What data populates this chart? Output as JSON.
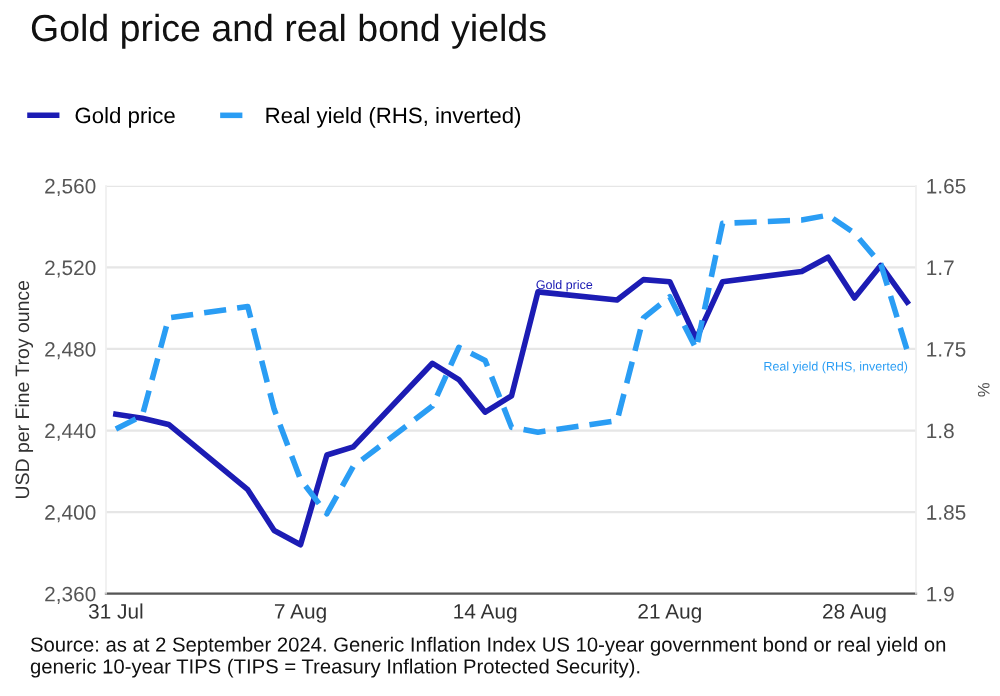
{
  "chart_data": {
    "type": "line",
    "title": "Gold price and real bond yields",
    "ylabel": "USD per Fine Troy ounce",
    "y2label": "%",
    "x": [
      "2024-07-31",
      "2024-08-01",
      "2024-08-02",
      "2024-08-05",
      "2024-08-06",
      "2024-08-07",
      "2024-08-08",
      "2024-08-09",
      "2024-08-12",
      "2024-08-13",
      "2024-08-14",
      "2024-08-15",
      "2024-08-16",
      "2024-08-19",
      "2024-08-20",
      "2024-08-21",
      "2024-08-22",
      "2024-08-23",
      "2024-08-26",
      "2024-08-27",
      "2024-08-28",
      "2024-08-29",
      "2024-08-30"
    ],
    "series": [
      {
        "name": "Gold price",
        "color": "#1c1cb4",
        "line_style": "solid",
        "values": [
          2448,
          2446,
          2443,
          2411,
          2391,
          2384,
          2428,
          2432,
          2473,
          2465,
          2449,
          2457,
          2508,
          2504,
          2514,
          2513,
          2485,
          2513,
          2518,
          2525,
          2505,
          2521,
          2503
        ]
      },
      {
        "name": "Real yield (RHS, inverted)",
        "color": "#2a9df4",
        "line_style": "dashed",
        "axis": "y2",
        "values": [
          1.799,
          1.791,
          1.731,
          1.724,
          1.787,
          1.83,
          1.851,
          1.822,
          1.785,
          1.749,
          1.757,
          1.798,
          1.801,
          1.794,
          1.731,
          1.718,
          1.75,
          1.673,
          1.671,
          1.668,
          1.679,
          1.698,
          1.751
        ]
      }
    ],
    "xlim": [
      "2024-07-30T15:00",
      "2024-08-30T08:00"
    ],
    "xticks": [
      {
        "value": "2024-07-31",
        "label": "31 Jul"
      },
      {
        "value": "2024-08-07",
        "label": "7 Aug"
      },
      {
        "value": "2024-08-14",
        "label": "14 Aug"
      },
      {
        "value": "2024-08-21",
        "label": "21 Aug"
      },
      {
        "value": "2024-08-28",
        "label": "28 Aug"
      }
    ],
    "ylim": [
      2360,
      2560
    ],
    "yticks": [
      {
        "value": 2360,
        "label": "2,360"
      },
      {
        "value": 2400,
        "label": "2,400"
      },
      {
        "value": 2440,
        "label": "2,440"
      },
      {
        "value": 2480,
        "label": "2,480"
      },
      {
        "value": 2520,
        "label": "2,520"
      },
      {
        "value": 2560,
        "label": "2,560"
      }
    ],
    "y2lim": [
      1.9,
      1.65
    ],
    "y2ticks": [
      1.9,
      1.85,
      1.8,
      1.75,
      1.7,
      1.65
    ],
    "grid": "y",
    "legend": "top left",
    "marker": "none",
    "annotations": [
      {
        "text": "Gold price",
        "x": "2024-08-17",
        "y": 2511
      },
      "Real yield (RHS, inverted)",
      "Source: as at 2 September 2024. Generic Inflation Index US 10-year government bond or real yield on generic 10-year TIPS (TIPS = Treasury Inflation Protected Security)."
    ]
  }
}
